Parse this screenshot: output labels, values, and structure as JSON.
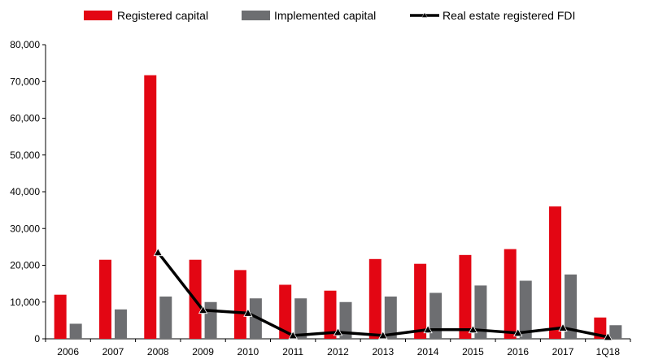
{
  "chart_data": {
    "type": "bar",
    "categories": [
      "2006",
      "2007",
      "2008",
      "2009",
      "2010",
      "2011",
      "2012",
      "2013",
      "2014",
      "2015",
      "2016",
      "2017",
      "1Q18"
    ],
    "series": [
      {
        "name": "Registered capital",
        "kind": "bar",
        "color": "#e30613",
        "values": [
          12000,
          21500,
          71700,
          21500,
          18700,
          14700,
          13100,
          21700,
          20400,
          22800,
          24400,
          36000,
          5800
        ]
      },
      {
        "name": "Implemented capital",
        "kind": "bar",
        "color": "#6d6e71",
        "values": [
          4100,
          8000,
          11500,
          10000,
          11000,
          11000,
          10000,
          11500,
          12500,
          14500,
          15800,
          17500,
          3700
        ]
      },
      {
        "name": "Real estate registered FDI",
        "kind": "line",
        "color": "#000000",
        "values": [
          null,
          null,
          23500,
          7800,
          7000,
          900,
          1800,
          900,
          2500,
          2500,
          1600,
          3000,
          500
        ]
      }
    ],
    "ylim": [
      0,
      80000
    ],
    "yticks": [
      0,
      10000,
      20000,
      30000,
      40000,
      50000,
      60000,
      70000,
      80000
    ],
    "ytick_labels": [
      "0",
      "10,000",
      "20,000",
      "30,000",
      "40,000",
      "50,000",
      "60,000",
      "70,000",
      "80,000"
    ],
    "legend_position": "top",
    "grid": false
  }
}
